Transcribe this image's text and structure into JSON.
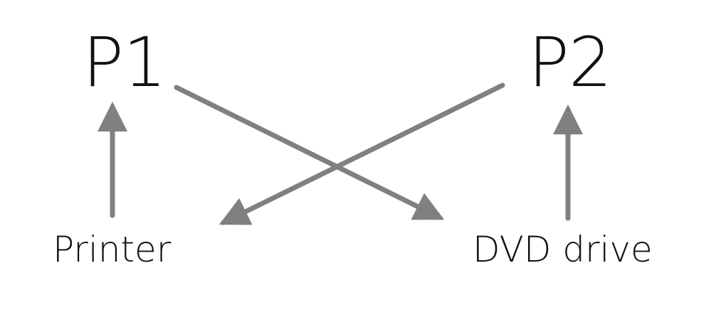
{
  "nodes": {
    "p1": "P1",
    "p2": "P2",
    "printer": "Printer",
    "dvd": "DVD drive"
  },
  "edges": [
    {
      "from": "printer",
      "to": "p1"
    },
    {
      "from": "dvd",
      "to": "p2"
    },
    {
      "from": "p1",
      "to": "dvd"
    },
    {
      "from": "p2",
      "to": "printer"
    }
  ],
  "colors": {
    "text": "#111111",
    "arrow": "#808080",
    "background": "#ffffff"
  }
}
